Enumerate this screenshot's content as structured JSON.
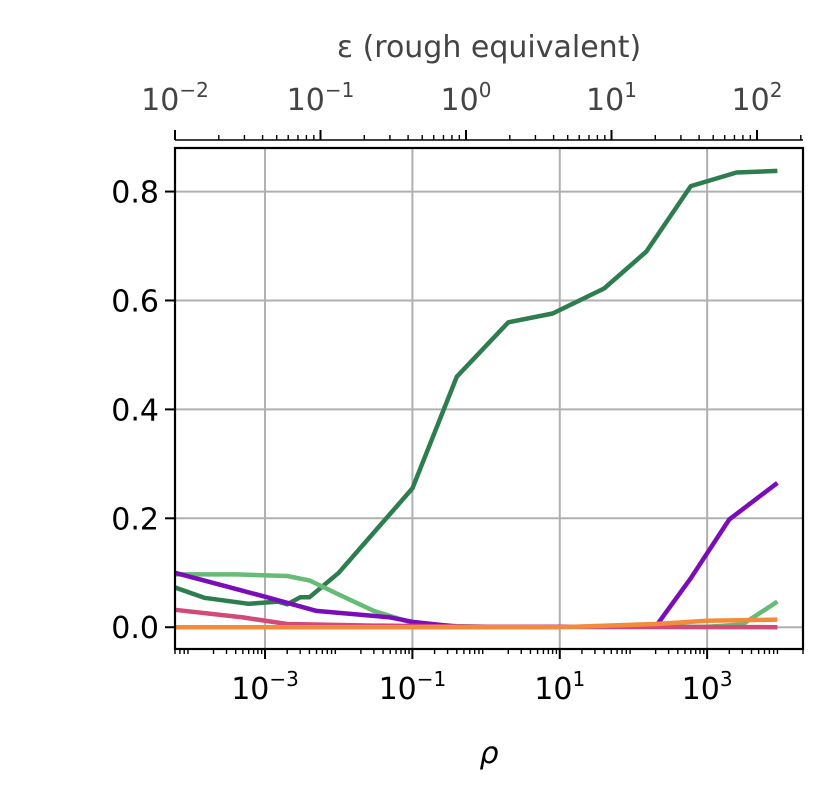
{
  "chart_data": {
    "type": "line",
    "xlabel": "ρ",
    "x_scale": "log",
    "xlim": [
      6e-05,
      20000
    ],
    "ylim": [
      -0.04,
      0.88
    ],
    "grid": true,
    "legend": "none",
    "yticks": [
      {
        "value": 0.0,
        "label": "0.0"
      },
      {
        "value": 0.2,
        "label": "0.2"
      },
      {
        "value": 0.4,
        "label": "0.4"
      },
      {
        "value": 0.6,
        "label": "0.6"
      },
      {
        "value": 0.8,
        "label": "0.8"
      }
    ],
    "xticks": [
      {
        "value": 0.001,
        "base": "10",
        "exp": "−3"
      },
      {
        "value": 0.1,
        "base": "10",
        "exp": "−1"
      },
      {
        "value": 10,
        "base": "10",
        "exp": "1"
      },
      {
        "value": 1000,
        "base": "10",
        "exp": "3"
      }
    ],
    "top_axis": {
      "label": "ε (rough equivalent)",
      "ticks": [
        {
          "base": "10",
          "exp": "−2"
        },
        {
          "base": "10",
          "exp": "−1"
        },
        {
          "base": "10",
          "exp": "0"
        },
        {
          "base": "10",
          "exp": "1"
        },
        {
          "base": "10",
          "exp": "2"
        }
      ]
    },
    "series": [
      {
        "color": "#2e7d4f",
        "points": [
          [
            6e-05,
            0.073
          ],
          [
            0.00015,
            0.054
          ],
          [
            0.0006,
            0.043
          ],
          [
            0.0015,
            0.047
          ],
          [
            0.002,
            0.042
          ],
          [
            0.003,
            0.055
          ],
          [
            0.004,
            0.055
          ],
          [
            0.01,
            0.1
          ],
          [
            0.1,
            0.255
          ],
          [
            0.4,
            0.46
          ],
          [
            2,
            0.56
          ],
          [
            8,
            0.576
          ],
          [
            40,
            0.622
          ],
          [
            150,
            0.69
          ],
          [
            600,
            0.81
          ],
          [
            2500,
            0.835
          ],
          [
            9000,
            0.838
          ]
        ]
      },
      {
        "color": "#66bb77",
        "points": [
          [
            6e-05,
            0.097
          ],
          [
            0.0004,
            0.097
          ],
          [
            0.002,
            0.094
          ],
          [
            0.004,
            0.086
          ],
          [
            0.01,
            0.06
          ],
          [
            0.03,
            0.03
          ],
          [
            0.1,
            0.008
          ],
          [
            0.4,
            0.002
          ],
          [
            1,
            0.001
          ],
          [
            1000,
            0.001
          ],
          [
            3000,
            0.005
          ],
          [
            9000,
            0.047
          ]
        ]
      },
      {
        "color": "#7a0db8",
        "points": [
          [
            6e-05,
            0.1
          ],
          [
            0.0003,
            0.075
          ],
          [
            0.001,
            0.056
          ],
          [
            0.005,
            0.03
          ],
          [
            0.05,
            0.018
          ],
          [
            0.1,
            0.01
          ],
          [
            0.4,
            0.001
          ],
          [
            1,
            0.001
          ],
          [
            200,
            0.001
          ],
          [
            600,
            0.09
          ],
          [
            2000,
            0.198
          ],
          [
            9000,
            0.265
          ]
        ]
      },
      {
        "color": "#d24a78",
        "points": [
          [
            6e-05,
            0.032
          ],
          [
            0.0005,
            0.018
          ],
          [
            0.002,
            0.006
          ],
          [
            0.03,
            0.003
          ],
          [
            1,
            0.001
          ],
          [
            9000,
            0.0
          ]
        ]
      },
      {
        "color": "#f28c3c",
        "points": [
          [
            6e-05,
            0.0
          ],
          [
            1,
            0.0
          ],
          [
            10,
            0.0
          ],
          [
            200,
            0.006
          ],
          [
            1000,
            0.012
          ],
          [
            9000,
            0.014
          ]
        ]
      }
    ]
  }
}
